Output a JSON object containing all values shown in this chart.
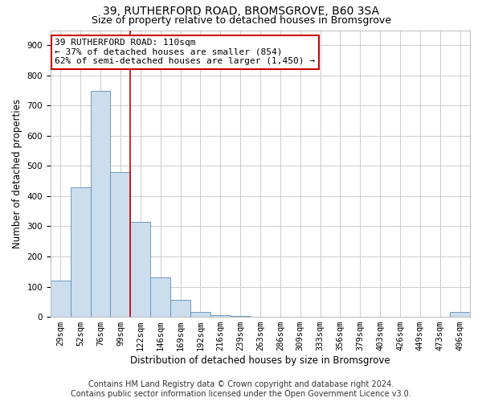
{
  "title": "39, RUTHERFORD ROAD, BROMSGROVE, B60 3SA",
  "subtitle": "Size of property relative to detached houses in Bromsgrove",
  "xlabel": "Distribution of detached houses by size in Bromsgrove",
  "ylabel": "Number of detached properties",
  "categories": [
    "29sqm",
    "52sqm",
    "76sqm",
    "99sqm",
    "122sqm",
    "146sqm",
    "169sqm",
    "192sqm",
    "216sqm",
    "239sqm",
    "263sqm",
    "286sqm",
    "309sqm",
    "333sqm",
    "356sqm",
    "379sqm",
    "403sqm",
    "426sqm",
    "449sqm",
    "473sqm",
    "496sqm"
  ],
  "values": [
    120,
    430,
    750,
    480,
    315,
    130,
    55,
    15,
    5,
    2,
    1,
    1,
    0,
    0,
    0,
    0,
    0,
    0,
    0,
    0,
    15
  ],
  "bar_color": "#ccdded",
  "bar_edge_color": "#5b8db8",
  "vline_color": "#cc0000",
  "vline_x": 3.5,
  "annotation_text": "39 RUTHERFORD ROAD: 110sqm\n← 37% of detached houses are smaller (854)\n62% of semi-detached houses are larger (1,450) →",
  "annotation_box_edge_color": "#cc0000",
  "ylim": [
    0,
    950
  ],
  "yticks": [
    0,
    100,
    200,
    300,
    400,
    500,
    600,
    700,
    800,
    900
  ],
  "title_fontsize": 10,
  "subtitle_fontsize": 9,
  "label_fontsize": 8.5,
  "tick_fontsize": 7.5,
  "annotation_fontsize": 8,
  "footer_fontsize": 7,
  "background_color": "#ffffff",
  "grid_color": "#cccccc",
  "footer_line1": "Contains HM Land Registry data © Crown copyright and database right 2024.",
  "footer_line2": "Contains public sector information licensed under the Open Government Licence v3.0."
}
